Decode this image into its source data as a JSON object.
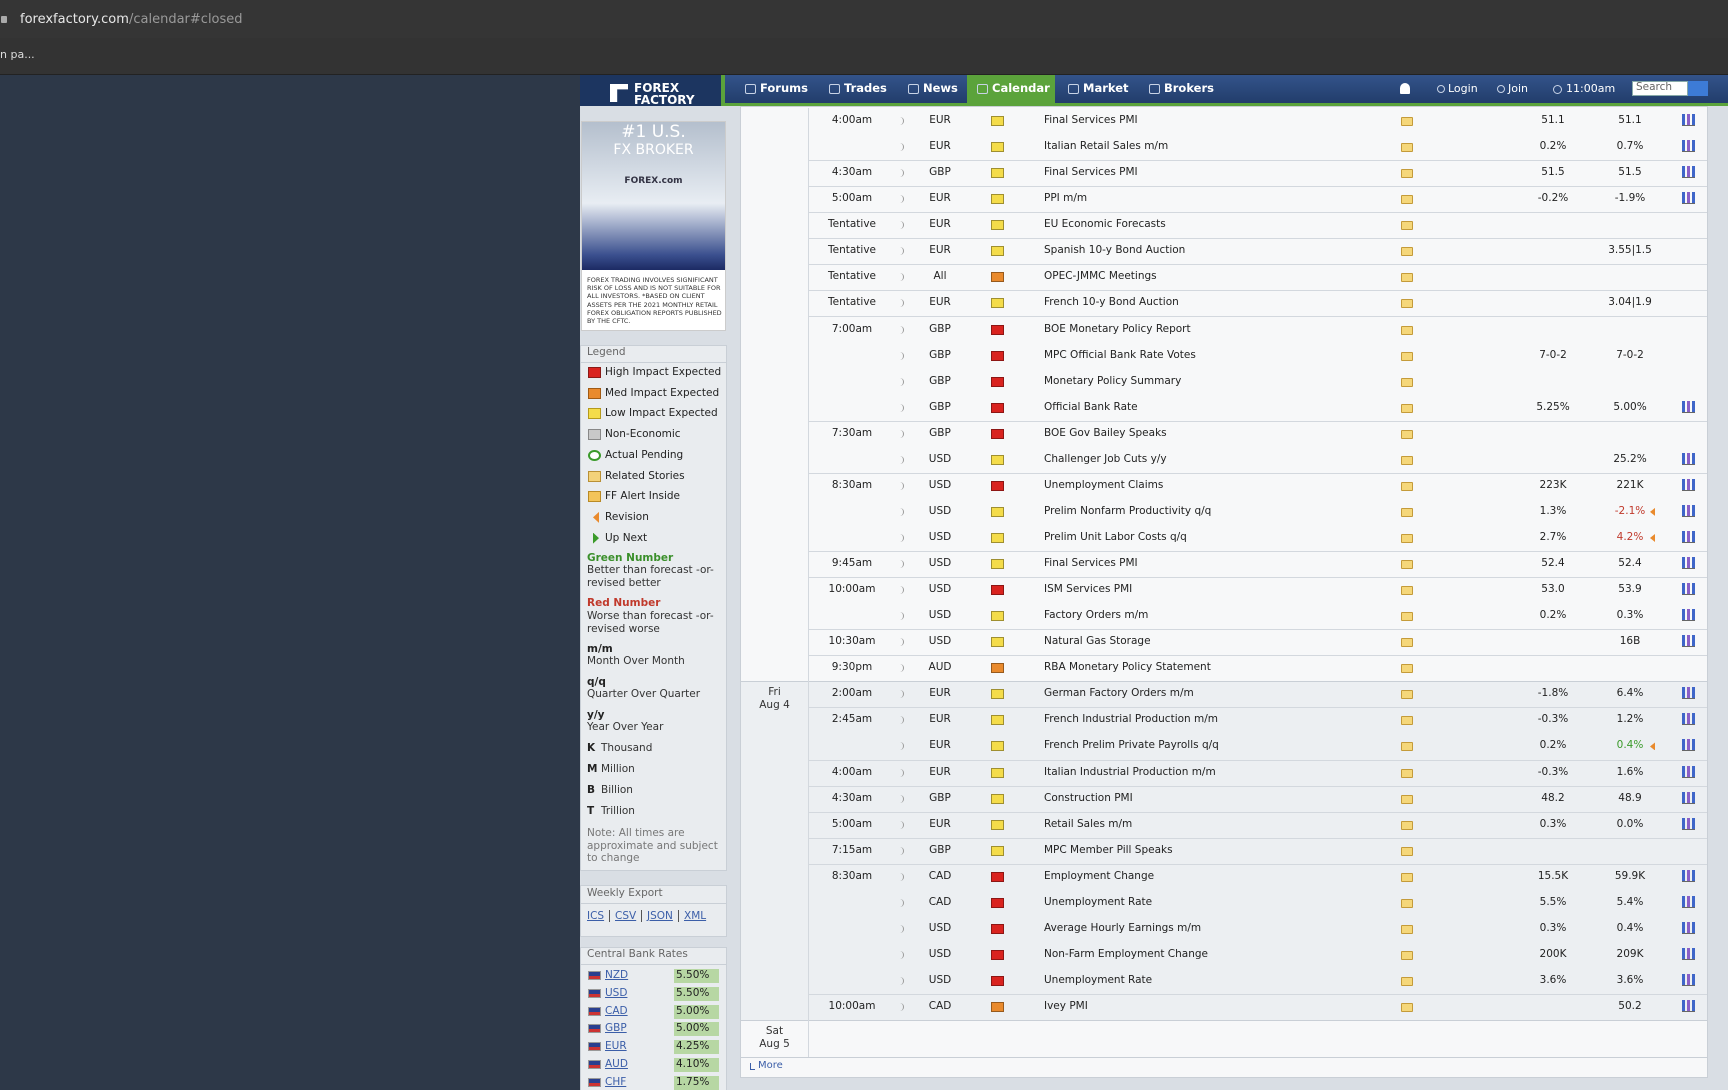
{
  "browser": {
    "url_domain": "forexfactory.com",
    "url_path": "/calendar#closed",
    "bookmark": "n pa..."
  },
  "nav": {
    "logo_line1": "FOREX",
    "logo_line2": "FACTORY",
    "items": [
      "Forums",
      "Trades",
      "News",
      "Calendar",
      "Market",
      "Brokers"
    ],
    "active_index": 3,
    "user_links": [
      "Login",
      "Join"
    ],
    "time": "11:00am",
    "search_placeholder": "Search"
  },
  "sidebar": {
    "ad": {
      "headline1": "#1 U.S.",
      "headline2": "FX BROKER",
      "brand": "FOREX.com",
      "disclaimer": "FOREX TRADING INVOLVES SIGNIFICANT RISK OF LOSS AND IS NOT SUITABLE FOR ALL INVESTORS. *BASED ON CLIENT ASSETS PER THE 2021 MONTHLY RETAIL FOREX OBLIGATION REPORTS PUBLISHED BY THE CFTC."
    },
    "legend": {
      "title": "Legend",
      "items": [
        {
          "icon": "high",
          "label": "High Impact Expected"
        },
        {
          "icon": "med",
          "label": "Med Impact Expected"
        },
        {
          "icon": "low",
          "label": "Low Impact Expected"
        },
        {
          "icon": "non",
          "label": "Non-Economic"
        },
        {
          "icon": "pending",
          "label": "Actual Pending"
        },
        {
          "icon": "stories",
          "label": "Related Stories"
        },
        {
          "icon": "alert",
          "label": "FF Alert Inside"
        },
        {
          "icon": "revision",
          "label": "Revision"
        },
        {
          "icon": "upnext",
          "label": "Up Next"
        }
      ],
      "notes": [
        {
          "term": "Green Number",
          "text": "Better than forecast -or- revised better",
          "color": "#3a8f2a"
        },
        {
          "term": "Red Number",
          "text": "Worse than forecast -or- revised worse",
          "color": "#c0392b"
        },
        {
          "term": "m/m",
          "text": "Month Over Month"
        },
        {
          "term": "q/q",
          "text": "Quarter Over Quarter"
        },
        {
          "term": "y/y",
          "text": "Year Over Year"
        }
      ],
      "units": [
        {
          "abbr": "K",
          "text": "Thousand"
        },
        {
          "abbr": "M",
          "text": "Million"
        },
        {
          "abbr": "B",
          "text": "Billion"
        },
        {
          "abbr": "T",
          "text": "Trillion"
        }
      ],
      "note": "Note: All times are approximate and subject to change"
    },
    "export": {
      "title": "Weekly Export",
      "links": [
        "ICS",
        "CSV",
        "JSON",
        "XML"
      ]
    },
    "rates": {
      "title": "Central Bank Rates",
      "rows": [
        {
          "currency": "NZD",
          "rate": "5.50%"
        },
        {
          "currency": "USD",
          "rate": "5.50%"
        },
        {
          "currency": "CAD",
          "rate": "5.00%"
        },
        {
          "currency": "GBP",
          "rate": "5.00%"
        },
        {
          "currency": "EUR",
          "rate": "4.25%"
        },
        {
          "currency": "AUD",
          "rate": "4.10%"
        },
        {
          "currency": "CHF",
          "rate": "1.75%"
        }
      ]
    }
  },
  "calendar": {
    "days": [
      {
        "rows": [
          {
            "time": "4:00am",
            "currency": "EUR",
            "impact": "low",
            "event": "Final Services PMI",
            "forecast": "51.1",
            "previous": "51.1",
            "graph": true
          },
          {
            "currency": "EUR",
            "impact": "low",
            "event": "Italian Retail Sales m/m",
            "forecast": "0.2%",
            "previous": "0.7%",
            "graph": true
          },
          {
            "time": "4:30am",
            "currency": "GBP",
            "impact": "low",
            "event": "Final Services PMI",
            "forecast": "51.5",
            "previous": "51.5",
            "graph": true
          },
          {
            "time": "5:00am",
            "currency": "EUR",
            "impact": "low",
            "event": "PPI m/m",
            "forecast": "-0.2%",
            "previous": "-1.9%",
            "graph": true
          },
          {
            "time": "Tentative",
            "currency": "EUR",
            "impact": "low",
            "event": "EU Economic Forecasts"
          },
          {
            "time": "Tentative",
            "currency": "EUR",
            "impact": "low",
            "event": "Spanish 10-y Bond Auction",
            "previous": "3.55|1.5"
          },
          {
            "time": "Tentative",
            "currency": "All",
            "impact": "med",
            "event": "OPEC-JMMC Meetings"
          },
          {
            "time": "Tentative",
            "currency": "EUR",
            "impact": "low",
            "event": "French 10-y Bond Auction",
            "previous": "3.04|1.9"
          },
          {
            "time": "7:00am",
            "currency": "GBP",
            "impact": "high",
            "event": "BOE Monetary Policy Report"
          },
          {
            "currency": "GBP",
            "impact": "high",
            "event": "MPC Official Bank Rate Votes",
            "forecast": "7-0-2",
            "previous": "7-0-2"
          },
          {
            "currency": "GBP",
            "impact": "high",
            "event": "Monetary Policy Summary"
          },
          {
            "currency": "GBP",
            "impact": "high",
            "event": "Official Bank Rate",
            "forecast": "5.25%",
            "previous": "5.00%",
            "graph": true
          },
          {
            "time": "7:30am",
            "currency": "GBP",
            "impact": "high",
            "event": "BOE Gov Bailey Speaks"
          },
          {
            "currency": "USD",
            "impact": "low",
            "event": "Challenger Job Cuts y/y",
            "previous": "25.2%",
            "graph": true
          },
          {
            "time": "8:30am",
            "currency": "USD",
            "impact": "high",
            "event": "Unemployment Claims",
            "forecast": "223K",
            "previous": "221K",
            "graph": true
          },
          {
            "currency": "USD",
            "impact": "low",
            "event": "Prelim Nonfarm Productivity q/q",
            "forecast": "1.3%",
            "previous": "-2.1%",
            "previous_color": "#c0392b",
            "graph": true
          },
          {
            "currency": "USD",
            "impact": "low",
            "event": "Prelim Unit Labor Costs q/q",
            "forecast": "2.7%",
            "previous": "4.2%",
            "previous_color": "#c0392b",
            "graph": true
          },
          {
            "time": "9:45am",
            "currency": "USD",
            "impact": "low",
            "event": "Final Services PMI",
            "forecast": "52.4",
            "previous": "52.4",
            "graph": true
          },
          {
            "time": "10:00am",
            "currency": "USD",
            "impact": "high",
            "event": "ISM Services PMI",
            "forecast": "53.0",
            "previous": "53.9",
            "graph": true
          },
          {
            "currency": "USD",
            "impact": "low",
            "event": "Factory Orders m/m",
            "forecast": "0.2%",
            "previous": "0.3%",
            "graph": true
          },
          {
            "time": "10:30am",
            "currency": "USD",
            "impact": "low",
            "event": "Natural Gas Storage",
            "previous": "16B",
            "graph": true
          },
          {
            "time": "9:30pm",
            "currency": "AUD",
            "impact": "med",
            "event": "RBA Monetary Policy Statement"
          }
        ]
      },
      {
        "day": "Fri",
        "date": "Aug 4",
        "rows": [
          {
            "time": "2:00am",
            "currency": "EUR",
            "impact": "low",
            "event": "German Factory Orders m/m",
            "forecast": "-1.8%",
            "previous": "6.4%",
            "graph": true
          },
          {
            "time": "2:45am",
            "currency": "EUR",
            "impact": "low",
            "event": "French Industrial Production m/m",
            "forecast": "-0.3%",
            "previous": "1.2%",
            "graph": true
          },
          {
            "currency": "EUR",
            "impact": "low",
            "event": "French Prelim Private Payrolls q/q",
            "forecast": "0.2%",
            "previous": "0.4%",
            "previous_color": "#3a9a2a",
            "graph": true
          },
          {
            "time": "4:00am",
            "currency": "EUR",
            "impact": "low",
            "event": "Italian Industrial Production m/m",
            "forecast": "-0.3%",
            "previous": "1.6%",
            "graph": true
          },
          {
            "time": "4:30am",
            "currency": "GBP",
            "impact": "low",
            "event": "Construction PMI",
            "forecast": "48.2",
            "previous": "48.9",
            "graph": true
          },
          {
            "time": "5:00am",
            "currency": "EUR",
            "impact": "low",
            "event": "Retail Sales m/m",
            "forecast": "0.3%",
            "previous": "0.0%",
            "graph": true
          },
          {
            "time": "7:15am",
            "currency": "GBP",
            "impact": "low",
            "event": "MPC Member Pill Speaks"
          },
          {
            "time": "8:30am",
            "currency": "CAD",
            "impact": "high",
            "event": "Employment Change",
            "forecast": "15.5K",
            "previous": "59.9K",
            "graph": true
          },
          {
            "currency": "CAD",
            "impact": "high",
            "event": "Unemployment Rate",
            "forecast": "5.5%",
            "previous": "5.4%",
            "graph": true
          },
          {
            "currency": "USD",
            "impact": "high",
            "event": "Average Hourly Earnings m/m",
            "forecast": "0.3%",
            "previous": "0.4%",
            "graph": true
          },
          {
            "currency": "USD",
            "impact": "high",
            "event": "Non-Farm Employment Change",
            "forecast": "200K",
            "previous": "209K",
            "graph": true
          },
          {
            "currency": "USD",
            "impact": "high",
            "event": "Unemployment Rate",
            "forecast": "3.6%",
            "previous": "3.6%",
            "graph": true
          },
          {
            "time": "10:00am",
            "currency": "CAD",
            "impact": "med",
            "event": "Ivey PMI",
            "previous": "50.2",
            "graph": true
          }
        ]
      },
      {
        "day": "Sat",
        "date": "Aug 5",
        "rows": []
      }
    ],
    "more": "More"
  }
}
